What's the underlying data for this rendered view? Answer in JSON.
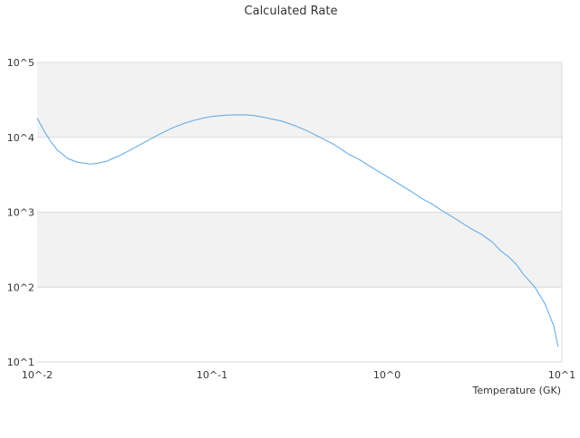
{
  "chart_data": {
    "type": "line",
    "title": "Calculated Rate",
    "xlabel": "Temperature (GK)",
    "ylabel": "",
    "x_scale": "log",
    "y_scale": "log",
    "xlim": [
      0.01,
      10
    ],
    "ylim": [
      10,
      100000
    ],
    "x_ticks": [
      {
        "value": 0.01,
        "label": "10^-2"
      },
      {
        "value": 0.1,
        "label": "10^-1"
      },
      {
        "value": 1,
        "label": "10^0"
      },
      {
        "value": 10,
        "label": "10^1"
      }
    ],
    "y_ticks": [
      {
        "value": 10,
        "label": "10^1"
      },
      {
        "value": 100,
        "label": "10^2"
      },
      {
        "value": 1000,
        "label": "10^3"
      },
      {
        "value": 10000,
        "label": "10^4"
      },
      {
        "value": 100000,
        "label": "10^5"
      }
    ],
    "grid": true,
    "banded_background": true,
    "legend": "none",
    "colors": {
      "line": "#5aa7e6",
      "band": "#f2f2f2",
      "grid": "#d9d9d9",
      "text": "#333333"
    },
    "series": [
      {
        "x": [
          0.01,
          0.011,
          0.012,
          0.013,
          0.015,
          0.017,
          0.02,
          0.022,
          0.025,
          0.03,
          0.035,
          0.04,
          0.05,
          0.06,
          0.07,
          0.08,
          0.09,
          0.1,
          0.12,
          0.14,
          0.16,
          0.18,
          0.2,
          0.25,
          0.3,
          0.35,
          0.4,
          0.5,
          0.6,
          0.7,
          0.8,
          1.0,
          1.2,
          1.4,
          1.6,
          1.8,
          2.0,
          2.5,
          3.0,
          3.5,
          4.0,
          4.5,
          5.0,
          5.5,
          6.0,
          7.0,
          8.0,
          9.0,
          9.5
        ],
        "y": [
          18000,
          12000,
          8700,
          6800,
          5200,
          4650,
          4400,
          4500,
          4800,
          5800,
          7000,
          8300,
          11000,
          13500,
          15500,
          17000,
          18200,
          19000,
          19800,
          20000,
          19900,
          19300,
          18400,
          16500,
          14200,
          12200,
          10400,
          8000,
          6000,
          5000,
          4100,
          3000,
          2300,
          1850,
          1500,
          1300,
          1100,
          800,
          610,
          500,
          400,
          300,
          250,
          200,
          150,
          100,
          60,
          30,
          16
        ]
      }
    ]
  }
}
